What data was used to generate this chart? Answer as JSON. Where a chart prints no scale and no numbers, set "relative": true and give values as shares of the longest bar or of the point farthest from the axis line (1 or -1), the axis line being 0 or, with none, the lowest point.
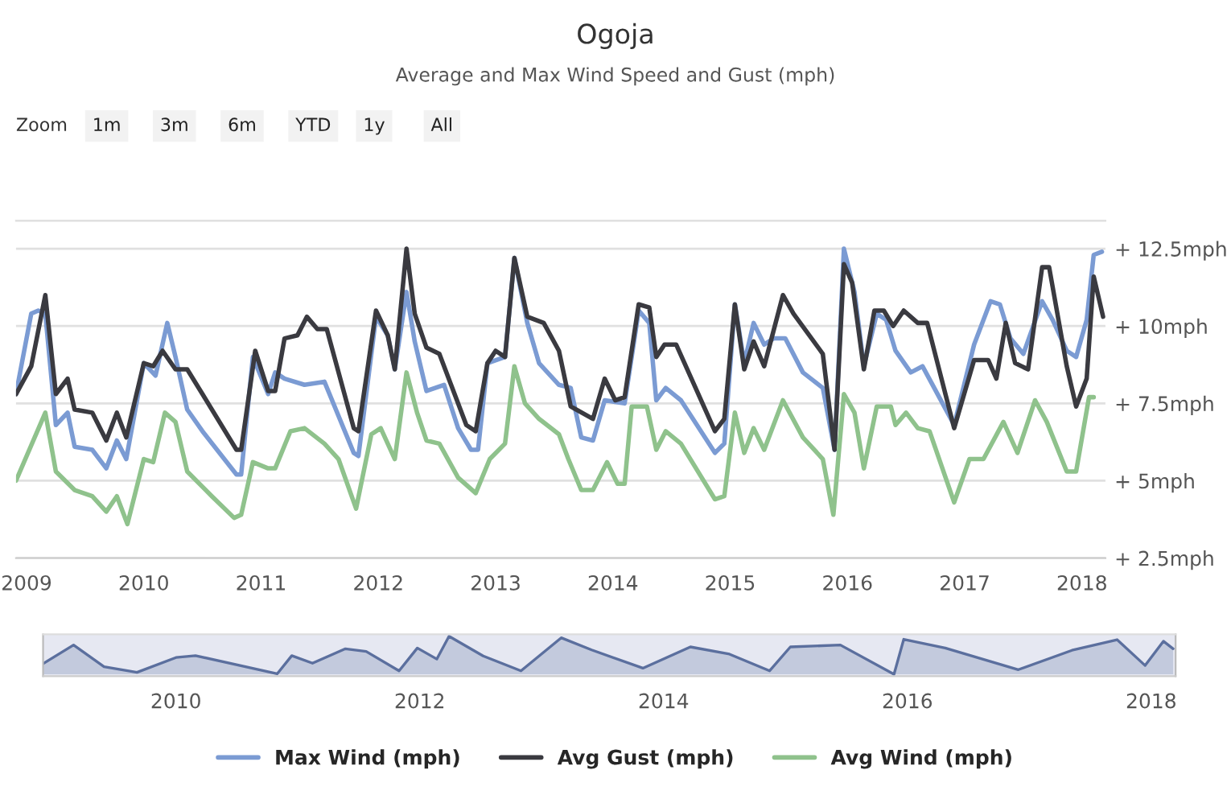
{
  "chart_data": [
    {
      "type": "line",
      "title": "Ogoja",
      "subtitle": "Average and Max Wind Speed and Gust (mph)",
      "annotations": [
        "Zoom",
        "1m",
        "3m",
        "6m",
        "YTD",
        "1y",
        "All"
      ],
      "xlim": [
        2008.91,
        2018.2
      ],
      "xticks": [
        2009,
        2010,
        2011,
        2012,
        2013,
        2014,
        2015,
        2016,
        2017,
        2018
      ],
      "ylim": [
        2.5,
        13.4
      ],
      "yticks": [
        {
          "value": 2.5,
          "label": "+ 2.5mph"
        },
        {
          "value": 5,
          "label": "+ 5mph"
        },
        {
          "value": 7.5,
          "label": "+ 7.5mph"
        },
        {
          "value": 10,
          "label": "+ 10mph"
        },
        {
          "value": 12.5,
          "label": "+ 12.5mph"
        }
      ],
      "grid": "y",
      "legend": "bottom",
      "marker": "none",
      "line_style": "solid",
      "series": [
        {
          "name": "Max Wind (mph)",
          "color": "#7b9bd3",
          "x": [
            2008.91,
            2009.04,
            2009.1,
            2009.16,
            2009.25,
            2009.35,
            2009.41,
            2009.56,
            2009.68,
            2009.77,
            2009.85,
            2010.0,
            2010.1,
            2010.2,
            2010.27,
            2010.37,
            2010.5,
            2010.79,
            2010.83,
            2010.93,
            2011.06,
            2011.12,
            2011.2,
            2011.37,
            2011.54,
            2011.79,
            2011.83,
            2011.98,
            2012.08,
            2012.14,
            2012.24,
            2012.31,
            2012.41,
            2012.56,
            2012.68,
            2012.79,
            2012.85,
            2012.93,
            2013.08,
            2013.16,
            2013.27,
            2013.37,
            2013.54,
            2013.64,
            2013.73,
            2013.83,
            2013.93,
            2014.1,
            2014.22,
            2014.31,
            2014.37,
            2014.45,
            2014.58,
            2014.87,
            2014.95,
            2015.04,
            2015.12,
            2015.2,
            2015.29,
            2015.37,
            2015.47,
            2015.62,
            2015.79,
            2015.89,
            2015.97,
            2016.06,
            2016.14,
            2016.25,
            2016.33,
            2016.41,
            2016.54,
            2016.64,
            2016.74,
            2016.91,
            2017.08,
            2017.22,
            2017.3,
            2017.39,
            2017.5,
            2017.66,
            2017.75,
            2017.87,
            2017.95,
            2018.04,
            2018.1,
            2018.17
          ],
          "values": [
            7.8,
            10.4,
            10.5,
            10.4,
            6.8,
            7.2,
            6.1,
            6.0,
            5.4,
            6.3,
            5.7,
            8.8,
            8.4,
            10.1,
            9.0,
            7.3,
            6.6,
            5.2,
            5.2,
            9.0,
            7.8,
            8.5,
            8.3,
            8.1,
            8.2,
            5.9,
            5.8,
            10.3,
            9.7,
            8.6,
            11.1,
            9.5,
            7.9,
            8.1,
            6.7,
            6.0,
            6.0,
            8.8,
            9.0,
            12.2,
            10.1,
            8.8,
            8.1,
            8.0,
            6.4,
            6.3,
            7.6,
            7.5,
            10.5,
            10.1,
            7.6,
            8.0,
            7.6,
            5.9,
            6.2,
            10.7,
            8.8,
            10.1,
            9.4,
            9.6,
            9.6,
            8.5,
            8.0,
            6.0,
            12.5,
            11.1,
            8.7,
            10.4,
            10.2,
            9.2,
            8.5,
            8.7,
            8.0,
            6.8,
            9.4,
            10.8,
            10.7,
            9.6,
            9.1,
            10.8,
            10.2,
            9.2,
            9.0,
            10.2,
            12.3,
            12.4
          ]
        },
        {
          "name": "Avg Gust (mph)",
          "color": "#3a3a40",
          "x": [
            2008.91,
            2009.04,
            2009.16,
            2009.25,
            2009.35,
            2009.41,
            2009.56,
            2009.68,
            2009.77,
            2009.85,
            2010.0,
            2010.08,
            2010.16,
            2010.27,
            2010.37,
            2010.5,
            2010.79,
            2010.83,
            2010.95,
            2011.06,
            2011.12,
            2011.2,
            2011.31,
            2011.39,
            2011.48,
            2011.56,
            2011.79,
            2011.83,
            2011.98,
            2012.08,
            2012.14,
            2012.24,
            2012.31,
            2012.41,
            2012.52,
            2012.62,
            2012.75,
            2012.83,
            2012.93,
            2013.0,
            2013.08,
            2013.16,
            2013.27,
            2013.41,
            2013.54,
            2013.64,
            2013.83,
            2013.93,
            2014.02,
            2014.1,
            2014.22,
            2014.31,
            2014.37,
            2014.44,
            2014.54,
            2014.87,
            2014.95,
            2015.04,
            2015.12,
            2015.2,
            2015.29,
            2015.45,
            2015.54,
            2015.79,
            2015.89,
            2015.97,
            2016.04,
            2016.14,
            2016.23,
            2016.31,
            2016.39,
            2016.48,
            2016.6,
            2016.68,
            2016.91,
            2017.08,
            2017.2,
            2017.27,
            2017.35,
            2017.43,
            2017.54,
            2017.66,
            2017.72,
            2017.87,
            2017.95,
            2018.04,
            2018.1,
            2018.18
          ],
          "values": [
            7.8,
            8.7,
            11.0,
            7.8,
            8.3,
            7.3,
            7.2,
            6.3,
            7.2,
            6.4,
            8.8,
            8.7,
            9.2,
            8.6,
            8.6,
            7.8,
            6.0,
            6.0,
            9.2,
            7.9,
            7.9,
            9.6,
            9.7,
            10.3,
            9.9,
            9.9,
            6.7,
            6.6,
            10.5,
            9.7,
            8.6,
            12.5,
            10.4,
            9.3,
            9.1,
            8.1,
            6.8,
            6.6,
            8.8,
            9.2,
            9.0,
            12.2,
            10.3,
            10.1,
            9.2,
            7.4,
            7.0,
            8.3,
            7.6,
            7.7,
            10.7,
            10.6,
            9.0,
            9.4,
            9.4,
            6.6,
            7.0,
            10.7,
            8.6,
            9.5,
            8.7,
            11.0,
            10.4,
            9.1,
            6.0,
            12.0,
            11.4,
            8.6,
            10.5,
            10.5,
            10.0,
            10.5,
            10.1,
            10.1,
            6.7,
            8.9,
            8.9,
            8.3,
            10.1,
            8.8,
            8.6,
            11.9,
            11.9,
            8.7,
            7.4,
            8.3,
            11.6,
            10.3
          ]
        },
        {
          "name": "Avg Wind (mph)",
          "color": "#8fc28c",
          "x": [
            2008.91,
            2009.16,
            2009.25,
            2009.41,
            2009.56,
            2009.68,
            2009.77,
            2009.86,
            2010.0,
            2010.08,
            2010.18,
            2010.27,
            2010.37,
            2010.58,
            2010.77,
            2010.83,
            2010.93,
            2011.06,
            2011.12,
            2011.25,
            2011.37,
            2011.54,
            2011.66,
            2011.81,
            2011.94,
            2012.02,
            2012.14,
            2012.24,
            2012.33,
            2012.41,
            2012.52,
            2012.68,
            2012.83,
            2012.95,
            2013.08,
            2013.16,
            2013.25,
            2013.37,
            2013.54,
            2013.62,
            2013.73,
            2013.83,
            2013.95,
            2014.04,
            2014.1,
            2014.16,
            2014.29,
            2014.37,
            2014.45,
            2014.58,
            2014.87,
            2014.95,
            2015.04,
            2015.12,
            2015.2,
            2015.29,
            2015.45,
            2015.62,
            2015.79,
            2015.88,
            2015.97,
            2016.06,
            2016.14,
            2016.25,
            2016.37,
            2016.41,
            2016.5,
            2016.6,
            2016.7,
            2016.91,
            2017.04,
            2017.16,
            2017.33,
            2017.45,
            2017.6,
            2017.7,
            2017.87,
            2017.95,
            2018.06,
            2018.1
          ],
          "values": [
            5.0,
            7.2,
            5.3,
            4.7,
            4.5,
            4.0,
            4.5,
            3.6,
            5.7,
            5.6,
            7.2,
            6.9,
            5.3,
            4.5,
            3.8,
            3.9,
            5.6,
            5.4,
            5.4,
            6.6,
            6.7,
            6.2,
            5.7,
            4.1,
            6.5,
            6.7,
            5.7,
            8.5,
            7.2,
            6.3,
            6.2,
            5.1,
            4.6,
            5.7,
            6.2,
            8.7,
            7.5,
            7.0,
            6.5,
            5.7,
            4.7,
            4.7,
            5.6,
            4.9,
            4.9,
            7.4,
            7.4,
            6.0,
            6.6,
            6.2,
            4.4,
            4.5,
            7.2,
            5.9,
            6.7,
            6.0,
            7.6,
            6.4,
            5.7,
            3.9,
            7.8,
            7.2,
            5.4,
            7.4,
            7.4,
            6.8,
            7.2,
            6.7,
            6.6,
            4.3,
            5.7,
            5.7,
            6.9,
            5.9,
            7.6,
            6.9,
            5.3,
            5.3,
            7.7,
            7.7
          ]
        }
      ]
    },
    {
      "type": "area",
      "relative": true,
      "tick_labels": "x",
      "xlim": [
        2008.91,
        2018.2
      ],
      "xticks": [
        2010,
        2012,
        2014,
        2016,
        2018
      ],
      "series": [
        {
          "color": "#5b6f9e",
          "x": [
            2008.91,
            2009.16,
            2009.41,
            2009.68,
            2010.0,
            2010.16,
            2010.83,
            2010.95,
            2011.12,
            2011.39,
            2011.56,
            2011.83,
            2011.98,
            2012.14,
            2012.24,
            2012.52,
            2012.83,
            2013.16,
            2013.41,
            2013.83,
            2014.22,
            2014.54,
            2014.87,
            2015.04,
            2015.45,
            2015.89,
            2015.97,
            2016.31,
            2016.91,
            2017.35,
            2017.72,
            2017.95,
            2018.1,
            2018.18
          ],
          "values": [
            0.28,
            0.77,
            0.2,
            0.05,
            0.44,
            0.49,
            0.01,
            0.49,
            0.29,
            0.67,
            0.6,
            0.09,
            0.69,
            0.4,
            1.0,
            0.48,
            0.09,
            0.96,
            0.64,
            0.16,
            0.72,
            0.53,
            0.09,
            0.72,
            0.77,
            0.0,
            0.92,
            0.69,
            0.12,
            0.63,
            0.91,
            0.23,
            0.87,
            0.67
          ]
        }
      ]
    }
  ]
}
